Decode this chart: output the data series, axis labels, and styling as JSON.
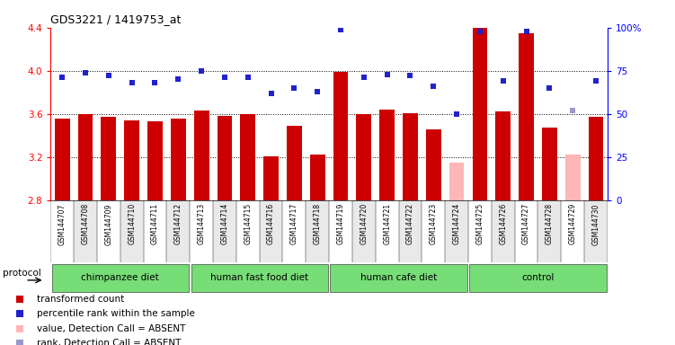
{
  "title": "GDS3221 / 1419753_at",
  "samples": [
    "GSM144707",
    "GSM144708",
    "GSM144709",
    "GSM144710",
    "GSM144711",
    "GSM144712",
    "GSM144713",
    "GSM144714",
    "GSM144715",
    "GSM144716",
    "GSM144717",
    "GSM144718",
    "GSM144719",
    "GSM144720",
    "GSM144721",
    "GSM144722",
    "GSM144723",
    "GSM144724",
    "GSM144725",
    "GSM144726",
    "GSM144727",
    "GSM144728",
    "GSM144729",
    "GSM144730"
  ],
  "bar_values": [
    3.56,
    3.6,
    3.57,
    3.54,
    3.53,
    3.56,
    3.63,
    3.58,
    3.6,
    3.21,
    3.49,
    3.22,
    3.99,
    3.6,
    3.64,
    3.61,
    3.46,
    3.15,
    4.45,
    3.62,
    4.35,
    3.47,
    3.22,
    3.57
  ],
  "rank_values": [
    71,
    74,
    72,
    68,
    68,
    70,
    75,
    71,
    71,
    62,
    65,
    63,
    99,
    71,
    73,
    72,
    66,
    50,
    98,
    69,
    98,
    65,
    52,
    69
  ],
  "absent_bar": [
    false,
    false,
    false,
    false,
    false,
    false,
    false,
    false,
    false,
    false,
    false,
    false,
    false,
    false,
    false,
    false,
    false,
    true,
    false,
    false,
    false,
    false,
    true,
    false
  ],
  "absent_rank": [
    false,
    false,
    false,
    false,
    false,
    false,
    false,
    false,
    false,
    false,
    false,
    false,
    false,
    false,
    false,
    false,
    false,
    false,
    false,
    false,
    false,
    false,
    true,
    false
  ],
  "groups": [
    {
      "label": "chimpanzee diet",
      "start": 0,
      "end": 6
    },
    {
      "label": "human fast food diet",
      "start": 6,
      "end": 12
    },
    {
      "label": "human cafe diet",
      "start": 12,
      "end": 18
    },
    {
      "label": "control",
      "start": 18,
      "end": 24
    }
  ],
  "group_color": "#77dd77",
  "ylim_left": [
    2.8,
    4.4
  ],
  "ylim_right": [
    0,
    100
  ],
  "bar_color": "#cc0000",
  "absent_bar_color": "#ffb6b6",
  "rank_color": "#2222cc",
  "absent_rank_color": "#9999cc",
  "grid_values": [
    3.2,
    3.6,
    4.0
  ],
  "plot_bg": "#ffffff",
  "xlabels_bg": "#d0d0d0"
}
